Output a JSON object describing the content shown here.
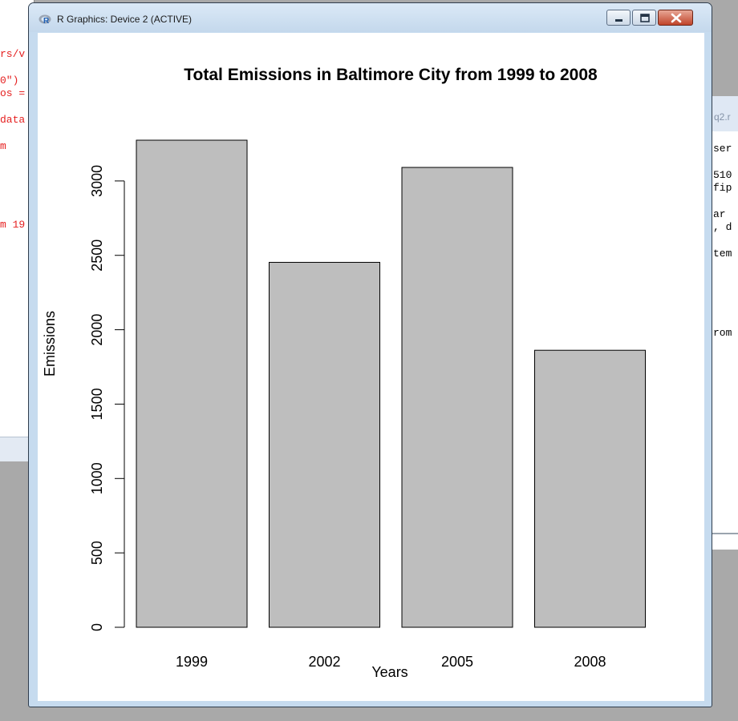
{
  "background": {
    "left_code_lines": [
      "rs/v",
      "",
      "0\")",
      "os =",
      "",
      "data",
      "",
      "m",
      "",
      "",
      "",
      "",
      "",
      "m 19"
    ],
    "right_tab_label": "q2.r",
    "right_code_lines": [
      "ser",
      "",
      "510",
      "fip",
      "",
      "ar",
      ", d",
      "",
      "tem",
      "",
      "",
      "",
      "",
      "",
      "rom"
    ]
  },
  "window": {
    "title": "R Graphics: Device 2 (ACTIVE)"
  },
  "chart_data": {
    "type": "bar",
    "title": "Total Emissions in Baltimore City from 1999 to 2008",
    "xlabel": "Years",
    "ylabel": "Emissions",
    "categories": [
      "1999",
      "2002",
      "2005",
      "2008"
    ],
    "values": [
      3274,
      2453,
      3091,
      1862
    ],
    "ylim": [
      0,
      3274
    ],
    "yticks": [
      0,
      500,
      1000,
      1500,
      2000,
      2500,
      3000
    ],
    "bar_color": "#bebebe",
    "grid": false
  }
}
